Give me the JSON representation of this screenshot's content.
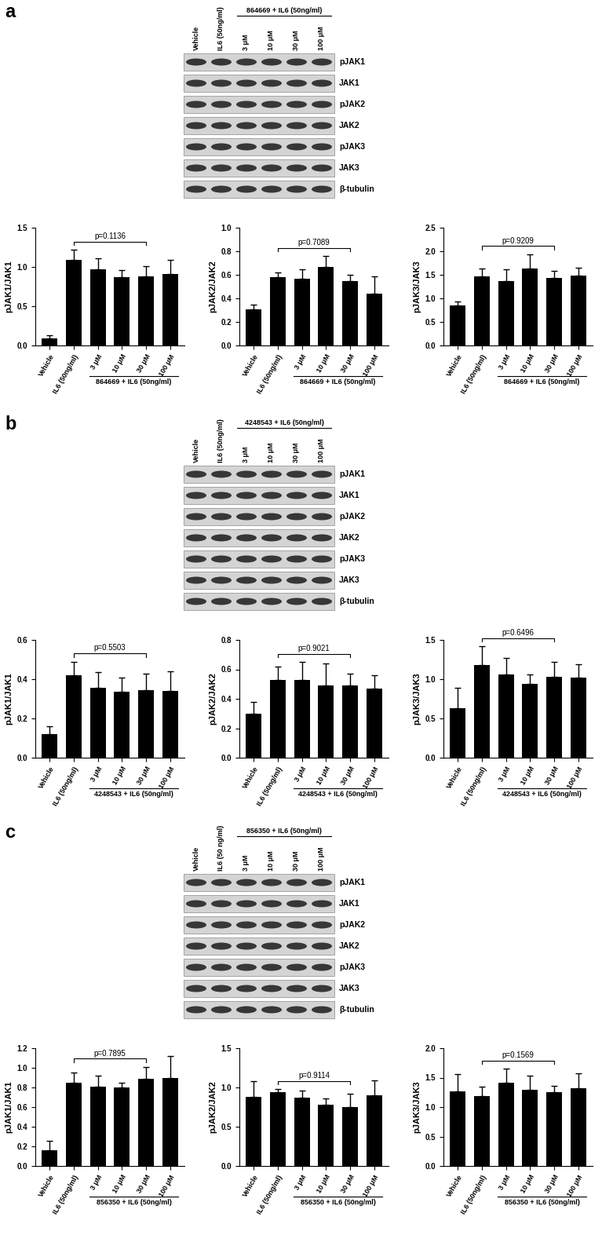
{
  "blots": [
    {
      "label": "a",
      "lanes": [
        "Vehicle",
        "IL6 (50ng/ml)",
        "3 μM",
        "10 μM",
        "30 μM",
        "100 μM"
      ],
      "group_label": "864669 + IL6 (50ng/ml)",
      "proteins": [
        "pJAK1",
        "JAK1",
        "pJAK2",
        "JAK2",
        "pJAK3",
        "JAK3",
        "β-tubulin"
      ]
    },
    {
      "label": "b",
      "lanes": [
        "Vehicle",
        "IL6 (50ng/ml)",
        "3 μM",
        "10 μM",
        "30 μM",
        "100 μM"
      ],
      "group_label": "4248543 + IL6 (50ng/ml)",
      "proteins": [
        "pJAK1",
        "JAK1",
        "pJAK2",
        "JAK2",
        "pJAK3",
        "JAK3",
        "β-tubulin"
      ]
    },
    {
      "label": "c",
      "lanes": [
        "Vehicle",
        "IL6 (50 ng/ml)",
        "3 μM",
        "10 μM",
        "30 μM",
        "100 μM"
      ],
      "group_label": "856350 + IL6 (50ng/ml)",
      "proteins": [
        "pJAK1",
        "JAK1",
        "pJAK2",
        "JAK2",
        "pJAK3",
        "JAK3",
        "β-tubulin"
      ]
    }
  ],
  "chart_data": [
    {
      "type": "bar",
      "ylabel": "pJAK1/JAK1",
      "categories": [
        "Vehicle",
        "IL6 (50ng/ml)",
        "3 μM",
        "10 μM",
        "30 μM",
        "100 μM"
      ],
      "values": [
        0.09,
        1.09,
        0.97,
        0.87,
        0.88,
        0.91
      ],
      "errors": [
        0.04,
        0.13,
        0.14,
        0.09,
        0.13,
        0.18
      ],
      "color": "#000000",
      "ylim": [
        0,
        1.5
      ],
      "yticks": [
        {
          "value": 0,
          "label": "0.0"
        },
        0.5,
        {
          "value": 1,
          "label": "1.0"
        },
        1.5
      ],
      "group_label": "864669 + IL6 (50ng/ml)",
      "annotation": {
        "text": "p=0.1136",
        "between": [
          "IL6 (50ng/ml)",
          "30 μM"
        ]
      }
    },
    {
      "type": "bar",
      "ylabel": "pJAK2/JAK2",
      "categories": [
        "Vehicle",
        "IL6 (50ng/ml)",
        "3 μM",
        "10 μM",
        "30 μM",
        "100 μM"
      ],
      "values": [
        0.31,
        0.58,
        0.57,
        0.67,
        0.55,
        0.44
      ],
      "errors": [
        0.04,
        0.04,
        0.08,
        0.09,
        0.05,
        0.15
      ],
      "color": "#000000",
      "ylim": [
        0,
        1.0
      ],
      "yticks": [
        {
          "value": 0,
          "label": "0.0"
        },
        0.2,
        0.4,
        0.6,
        0.8,
        {
          "value": 1,
          "label": "1.0"
        }
      ],
      "group_label": "864669 + IL6 (50ng/ml)",
      "annotation": {
        "text": "p=0.7089",
        "between": [
          "IL6 (50ng/ml)",
          "30 μM"
        ]
      }
    },
    {
      "type": "bar",
      "ylabel": "pJAK3/JAK3",
      "categories": [
        "Vehicle",
        "IL6 (50ng/ml)",
        "3 μM",
        "10 μM",
        "30 μM",
        "100 μM"
      ],
      "values": [
        0.85,
        1.47,
        1.37,
        1.63,
        1.44,
        1.49
      ],
      "errors": [
        0.09,
        0.16,
        0.24,
        0.31,
        0.14,
        0.16
      ],
      "color": "#000000",
      "ylim": [
        0,
        2.5
      ],
      "yticks": [
        {
          "value": 0,
          "label": "0.0"
        },
        0.5,
        {
          "value": 1,
          "label": "1.0"
        },
        1.5,
        {
          "value": 2,
          "label": "2.0"
        },
        2.5
      ],
      "group_label": "864669 + IL6 (50ng/ml)",
      "annotation": {
        "text": "p=0.9209",
        "between": [
          "IL6 (50ng/ml)",
          "30 μM"
        ]
      }
    },
    {
      "type": "bar",
      "ylabel": "pJAK1/JAK1",
      "categories": [
        "Vehicle",
        "IL6 (50ng/ml)",
        "3 μM",
        "10 μM",
        "30 μM",
        "100 μM"
      ],
      "values": [
        0.12,
        0.42,
        0.355,
        0.335,
        0.345,
        0.34
      ],
      "errors": [
        0.04,
        0.07,
        0.08,
        0.075,
        0.085,
        0.1
      ],
      "color": "#000000",
      "ylim": [
        0,
        0.6
      ],
      "yticks": [
        {
          "value": 0,
          "label": "0.0"
        },
        0.2,
        0.4,
        0.6
      ],
      "group_label": "4248543 + IL6 (50ng/ml)",
      "annotation": {
        "text": "p=0.5503",
        "between": [
          "IL6 (50ng/ml)",
          "30 μM"
        ]
      }
    },
    {
      "type": "bar",
      "ylabel": "pJAK2/JAK2",
      "categories": [
        "Vehicle",
        "IL6 (50ng/ml)",
        "3 μM",
        "10 μM",
        "30 μM",
        "100 μM"
      ],
      "values": [
        0.3,
        0.53,
        0.53,
        0.49,
        0.49,
        0.47
      ],
      "errors": [
        0.08,
        0.09,
        0.12,
        0.15,
        0.08,
        0.09
      ],
      "color": "#000000",
      "ylim": [
        0,
        0.8
      ],
      "yticks": [
        {
          "value": 0,
          "label": "0.0"
        },
        0.2,
        0.4,
        0.6,
        0.8
      ],
      "group_label": "4248543 + IL6 (50ng/ml)",
      "annotation": {
        "text": "p=0.9021",
        "between": [
          "IL6 (50ng/ml)",
          "30 μM"
        ]
      }
    },
    {
      "type": "bar",
      "ylabel": "pJAK3/JAK3",
      "categories": [
        "Vehicle",
        "IL6 (50ng/ml)",
        "3 μM",
        "10 μM",
        "30 μM",
        "100 μM"
      ],
      "values": [
        0.63,
        1.18,
        1.06,
        0.94,
        1.03,
        1.02
      ],
      "errors": [
        0.26,
        0.24,
        0.21,
        0.12,
        0.19,
        0.17
      ],
      "color": "#000000",
      "ylim": [
        0,
        1.5
      ],
      "yticks": [
        {
          "value": 0,
          "label": "0.0"
        },
        0.5,
        {
          "value": 1,
          "label": "1.0"
        },
        1.5
      ],
      "group_label": "4248543 + IL6 (50ng/ml)",
      "annotation": {
        "text": "p=0.6496",
        "between": [
          "IL6 (50ng/ml)",
          "30 μM"
        ]
      }
    },
    {
      "type": "bar",
      "ylabel": "pJAK1/JAK1",
      "categories": [
        "Vehicle",
        "IL6 (50ng/ml)",
        "3 μM",
        "10 μM",
        "30 μM",
        "100 μM"
      ],
      "values": [
        0.16,
        0.85,
        0.81,
        0.8,
        0.89,
        0.9
      ],
      "errors": [
        0.1,
        0.1,
        0.11,
        0.05,
        0.12,
        0.22
      ],
      "color": "#000000",
      "ylim": [
        0,
        1.2
      ],
      "yticks": [
        {
          "value": 0,
          "label": "0.0"
        },
        0.2,
        0.4,
        0.6,
        0.8,
        {
          "value": 1,
          "label": "1.0"
        },
        1.2
      ],
      "group_label": "856350 + IL6 (50ng/ml)",
      "annotation": {
        "text": "p=0.7895",
        "between": [
          "IL6 (50ng/ml)",
          "30 μM"
        ]
      }
    },
    {
      "type": "bar",
      "ylabel": "pJAK2/JAK2",
      "categories": [
        "Vehicle",
        "IL6 (50ng/ml)",
        "3 μM",
        "10 μM",
        "30 μM",
        "100 μM"
      ],
      "values": [
        0.88,
        0.94,
        0.87,
        0.78,
        0.75,
        0.9
      ],
      "errors": [
        0.2,
        0.04,
        0.09,
        0.08,
        0.17,
        0.19
      ],
      "color": "#000000",
      "ylim": [
        0,
        1.5
      ],
      "yticks": [
        {
          "value": 0,
          "label": "0.0"
        },
        0.5,
        {
          "value": 1,
          "label": "1.0"
        },
        1.5
      ],
      "group_label": "856350 + IL6 (50ng/ml)",
      "annotation": {
        "text": "p=0.9114",
        "between": [
          "IL6 (50ng/ml)",
          "30 μM"
        ]
      }
    },
    {
      "type": "bar",
      "ylabel": "pJAK3/JAK3",
      "categories": [
        "Vehicle",
        "IL6 (50ng/ml)",
        "3 μM",
        "10 μM",
        "30 μM",
        "100 μM"
      ],
      "values": [
        1.27,
        1.19,
        1.41,
        1.3,
        1.26,
        1.32
      ],
      "errors": [
        0.29,
        0.16,
        0.24,
        0.24,
        0.1,
        0.25
      ],
      "color": "#000000",
      "ylim": [
        0,
        2.0
      ],
      "yticks": [
        {
          "value": 0,
          "label": "0.0"
        },
        0.5,
        {
          "value": 1,
          "label": "1.0"
        },
        1.5,
        {
          "value": 2,
          "label": "2.0"
        }
      ],
      "group_label": "856350 + IL6 (50ng/ml)",
      "annotation": {
        "text": "p=0.1569",
        "between": [
          "IL6 (50ng/ml)",
          "30 μM"
        ]
      }
    }
  ]
}
